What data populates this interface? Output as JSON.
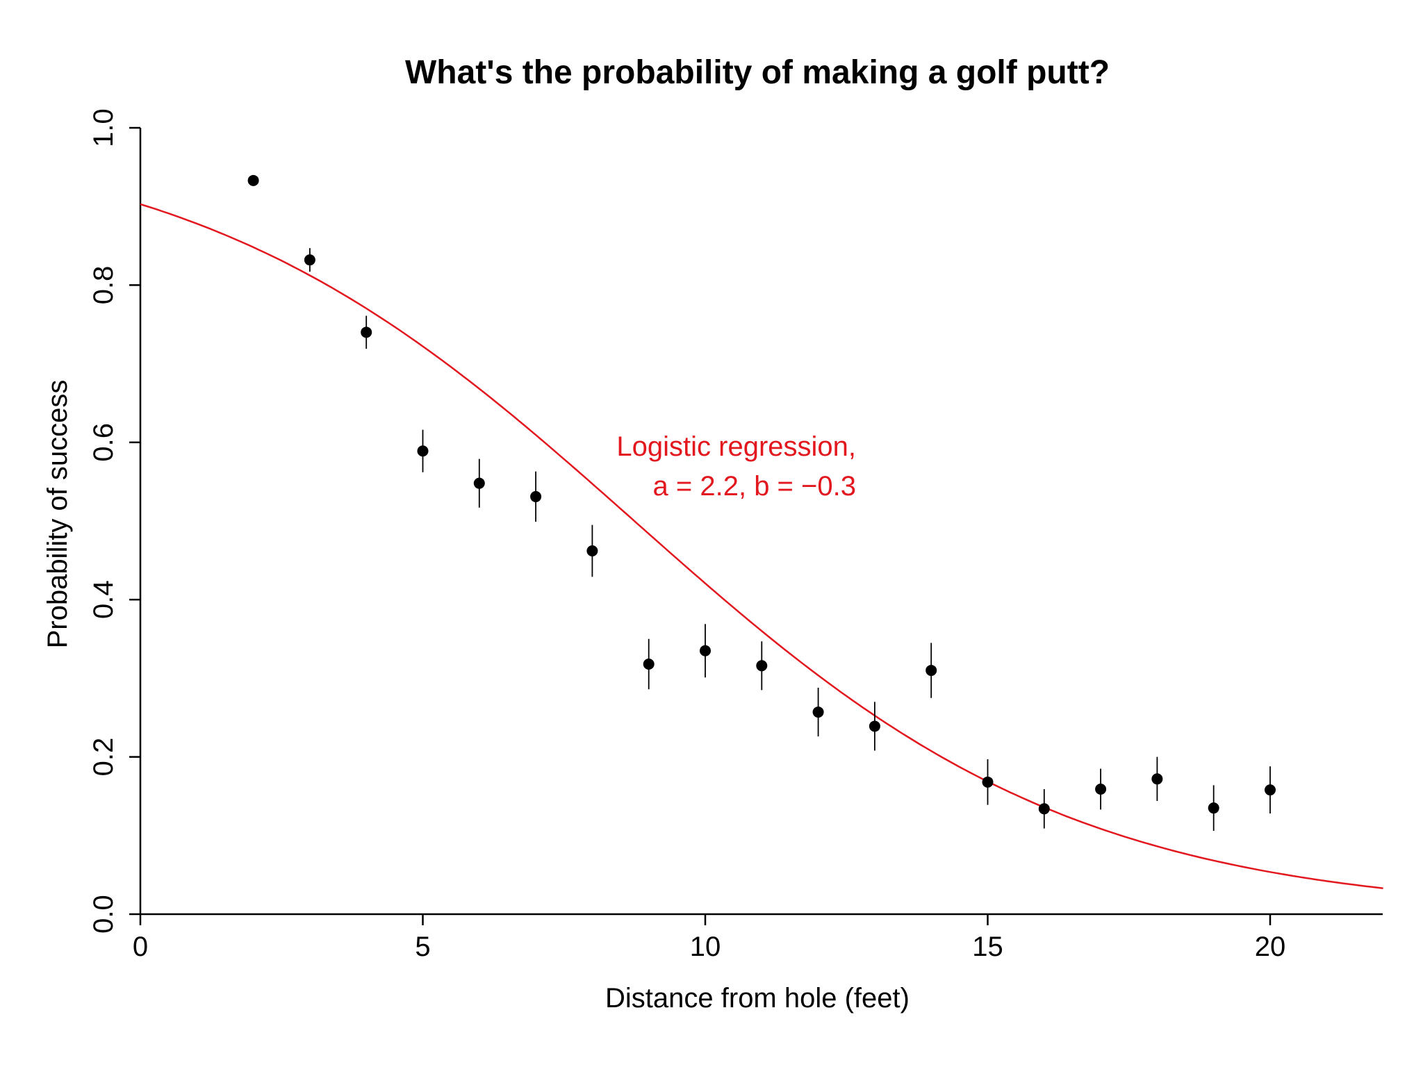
{
  "chart_data": {
    "type": "scatter",
    "title": "What's the probability of making a golf putt?",
    "xlabel": "Distance from hole (feet)",
    "ylabel": "Probability of success",
    "xlim": [
      0,
      22
    ],
    "ylim": [
      0,
      1
    ],
    "x_ticks": [
      0,
      5,
      10,
      15,
      20
    ],
    "y_ticks": [
      0,
      0.2,
      0.4,
      0.6,
      0.8,
      1
    ],
    "x_tick_labels": [
      "0",
      "5",
      "10",
      "15",
      "20"
    ],
    "y_tick_labels": [
      "0.0",
      "0.2",
      "0.4",
      "0.6",
      "0.8",
      "1.0"
    ],
    "grid": false,
    "points": [
      {
        "x": 2,
        "y": 0.933,
        "err": 0.004
      },
      {
        "x": 3,
        "y": 0.832,
        "err": 0.015
      },
      {
        "x": 4,
        "y": 0.74,
        "err": 0.021
      },
      {
        "x": 5,
        "y": 0.589,
        "err": 0.027
      },
      {
        "x": 6,
        "y": 0.548,
        "err": 0.031
      },
      {
        "x": 7,
        "y": 0.531,
        "err": 0.032
      },
      {
        "x": 8,
        "y": 0.462,
        "err": 0.033
      },
      {
        "x": 9,
        "y": 0.318,
        "err": 0.032
      },
      {
        "x": 10,
        "y": 0.335,
        "err": 0.034
      },
      {
        "x": 11,
        "y": 0.316,
        "err": 0.031
      },
      {
        "x": 12,
        "y": 0.257,
        "err": 0.031
      },
      {
        "x": 13,
        "y": 0.239,
        "err": 0.031
      },
      {
        "x": 14,
        "y": 0.31,
        "err": 0.035
      },
      {
        "x": 15,
        "y": 0.168,
        "err": 0.029
      },
      {
        "x": 16,
        "y": 0.134,
        "err": 0.025
      },
      {
        "x": 17,
        "y": 0.159,
        "err": 0.026
      },
      {
        "x": 18,
        "y": 0.172,
        "err": 0.028
      },
      {
        "x": 19,
        "y": 0.135,
        "err": 0.029
      },
      {
        "x": 20,
        "y": 0.158,
        "err": 0.03
      }
    ],
    "fit": {
      "label_line1": "Logistic regression,",
      "label_line2": "a = 2.2, b = −0.3",
      "a": 2.23,
      "b": -0.255,
      "color": "#e3171e"
    },
    "point_color": "#000000"
  }
}
